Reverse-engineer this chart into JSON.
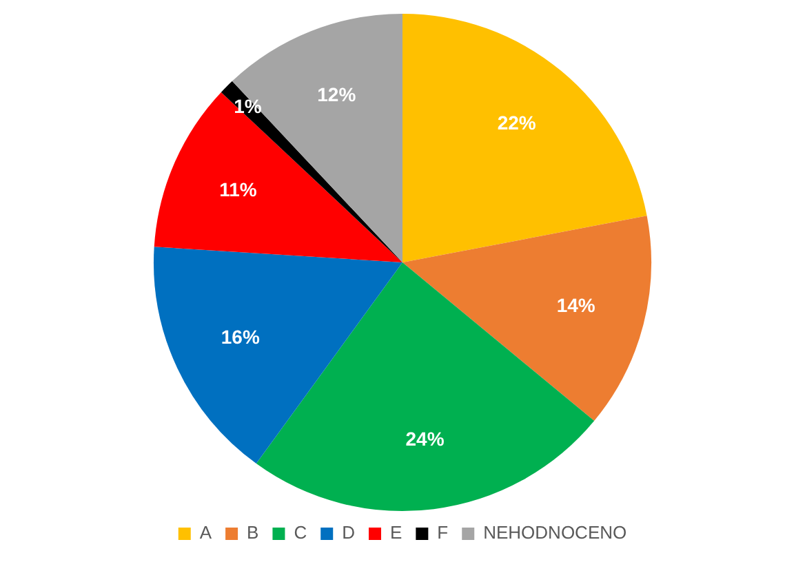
{
  "chart_data": {
    "type": "pie",
    "categories": [
      "A",
      "B",
      "C",
      "D",
      "E",
      "F",
      "NEHODNOCENO"
    ],
    "values": [
      22,
      14,
      24,
      16,
      11,
      1,
      12
    ],
    "value_labels": [
      "22%",
      "14%",
      "24%",
      "16%",
      "11%",
      "1%",
      "12%"
    ],
    "colors": [
      "#ffc000",
      "#ed7d31",
      "#00b050",
      "#0070c0",
      "#ff0000",
      "#000000",
      "#a5a5a5"
    ],
    "legend": "bottom"
  }
}
